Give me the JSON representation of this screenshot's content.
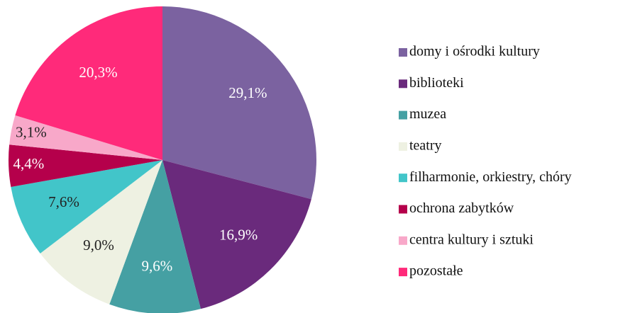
{
  "chart_data": {
    "type": "pie",
    "categories": [
      "domy i ośrodki kultury",
      "biblioteki",
      "muzea",
      "teatry",
      "filharmonie, orkiestry, chóry",
      "ochrona zabytków",
      "centra kultury i sztuki",
      "pozostałe"
    ],
    "values": [
      29.1,
      16.9,
      9.6,
      9.0,
      7.6,
      4.4,
      3.1,
      20.3
    ],
    "value_labels": [
      "29,1%",
      "16,9%",
      "9,6%",
      "9,0%",
      "7,6%",
      "4,4%",
      "3,1%",
      "20,3%"
    ],
    "colors": [
      "#7b62a0",
      "#6a2a7c",
      "#45a0a3",
      "#eef1e2",
      "#42c5c9",
      "#b5004b",
      "#f8a8c9",
      "#ff2a7a"
    ],
    "legend": "right"
  }
}
